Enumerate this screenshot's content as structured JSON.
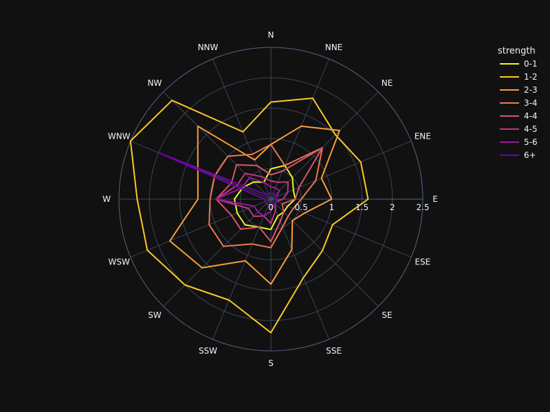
{
  "chart_data": {
    "type": "line_polar",
    "directions": [
      "N",
      "NNE",
      "NE",
      "ENE",
      "E",
      "ESE",
      "SE",
      "SSE",
      "S",
      "SSW",
      "SW",
      "WSW",
      "W",
      "WNW",
      "NW",
      "NNW"
    ],
    "radial_ticks": [
      "0",
      "0.5",
      "1",
      "1.5",
      "2",
      "2.5"
    ],
    "radial_range": [
      0,
      2.5
    ],
    "legend": {
      "title": "strength",
      "placement": "top-right"
    },
    "series": [
      {
        "name": "0-1",
        "color": "#f0f921",
        "values": [
          0.5,
          0.6,
          0.5,
          0.4,
          0.4,
          0.3,
          0.3,
          0.3,
          0.5,
          0.5,
          0.6,
          0.6,
          0.6,
          0.5,
          0.4,
          0.3
        ]
      },
      {
        "name": "1-2",
        "color": "#fdca26",
        "values": [
          1.6,
          1.8,
          1.5,
          1.6,
          1.6,
          1.1,
          1.2,
          1.4,
          2.2,
          1.8,
          2.0,
          2.2,
          2.2,
          2.5,
          2.3,
          1.2
        ]
      },
      {
        "name": "2-3",
        "color": "#fb9f3a",
        "values": [
          0.9,
          1.3,
          1.6,
          0.9,
          1.0,
          0.6,
          0.5,
          0.9,
          1.4,
          1.1,
          1.6,
          1.8,
          1.2,
          1.3,
          1.7,
          0.7
        ]
      },
      {
        "name": "3-4",
        "color": "#ed7953",
        "values": [
          0.9,
          0.6,
          1.2,
          0.8,
          0.5,
          0.4,
          0.4,
          0.5,
          0.8,
          0.8,
          1.1,
          1.1,
          1.0,
          1.0,
          1.0,
          0.8
        ]
      },
      {
        "name": "4-4",
        "color": "#d8576b",
        "values": [
          0.4,
          0.5,
          1.2,
          0.5,
          0.4,
          0.2,
          0.3,
          0.4,
          0.7,
          0.5,
          0.7,
          0.7,
          0.9,
          0.7,
          0.8,
          0.6
        ]
      },
      {
        "name": "4-5",
        "color": "#bd3786",
        "values": [
          0.3,
          0.3,
          0.4,
          0.3,
          0.2,
          0.1,
          0.1,
          0.2,
          0.4,
          0.3,
          0.4,
          0.4,
          0.9,
          0.6,
          0.6,
          0.4
        ]
      },
      {
        "name": "5-6",
        "color": "#9c179e",
        "values": [
          0.2,
          0.2,
          0.2,
          0.1,
          0.1,
          0.1,
          0.1,
          0.1,
          0.2,
          0.3,
          0.3,
          0.3,
          0.9,
          0.5,
          0.5,
          0.3
        ]
      },
      {
        "name": "6+",
        "color": "#7201a8",
        "values": [
          0.1,
          0.1,
          0.1,
          0.1,
          0.1,
          0.1,
          0.1,
          0.1,
          0.1,
          0.1,
          0.1,
          0.1,
          0.1,
          2.0,
          0.1,
          0.1
        ]
      }
    ]
  }
}
